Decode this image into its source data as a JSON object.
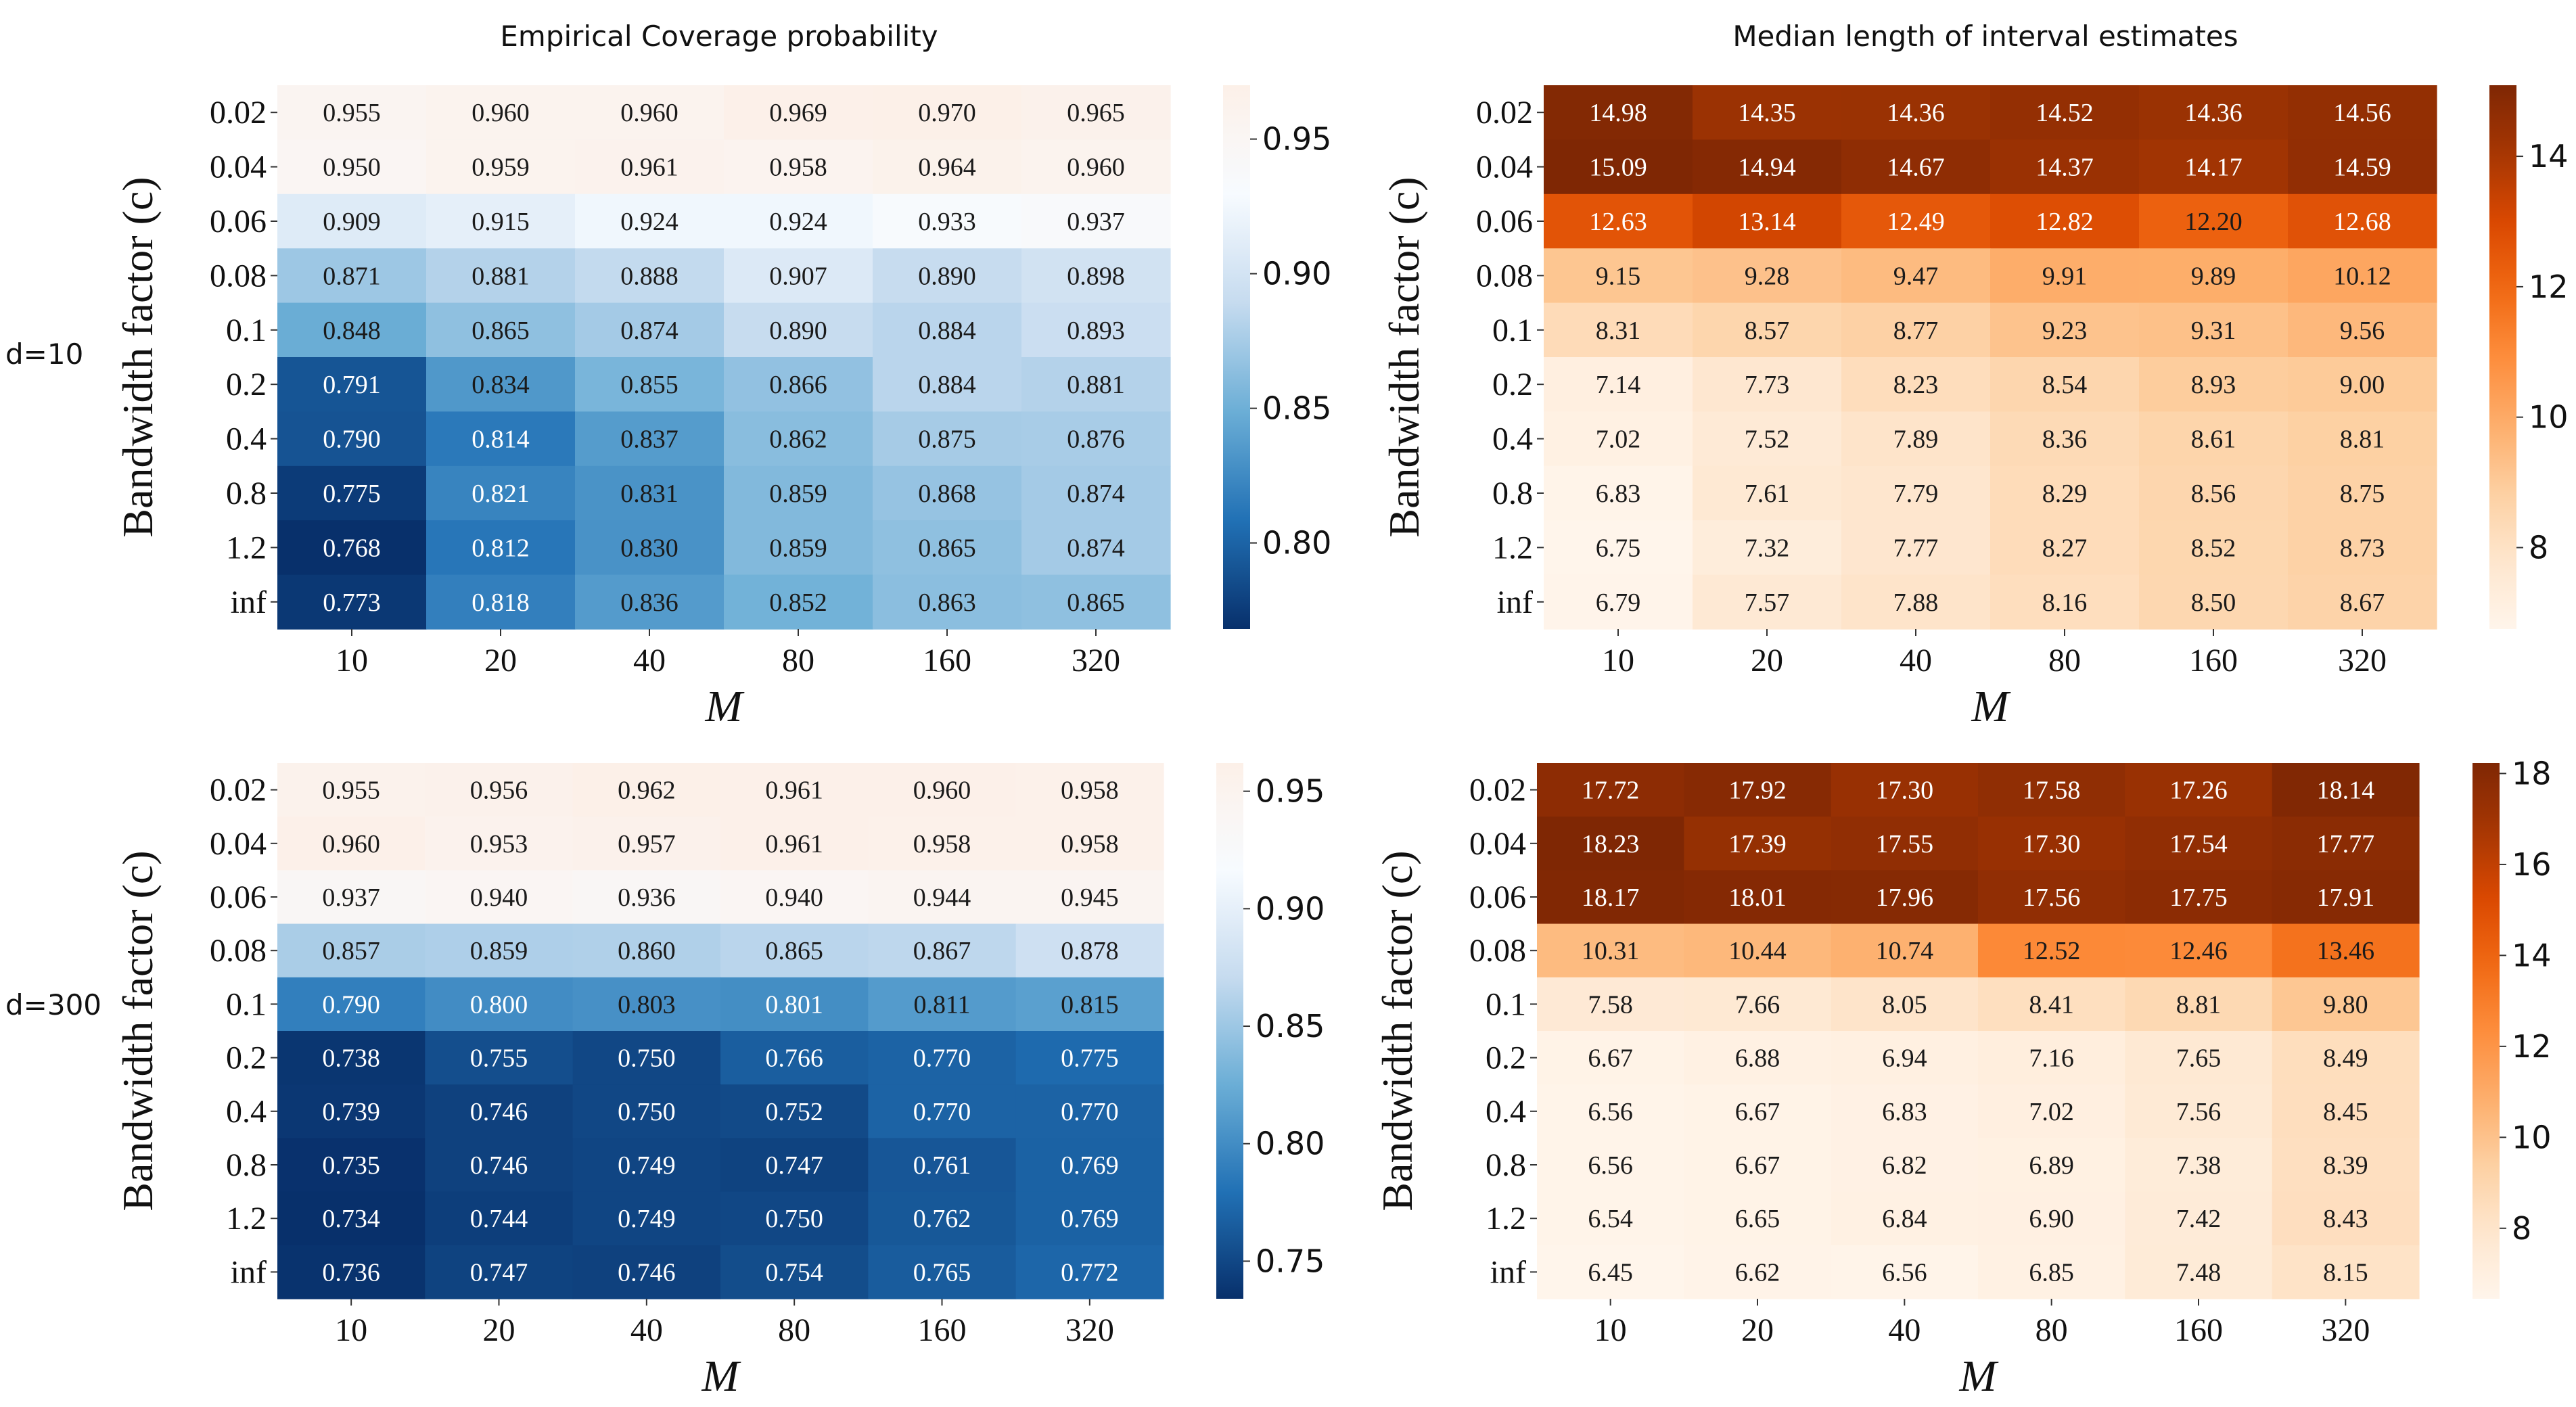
{
  "column_titles": {
    "left": "Empirical Coverage probability",
    "right": "Median length of interval estimates"
  },
  "row_labels": [
    "d=10",
    "d=300"
  ],
  "chart_data": [
    {
      "type": "heatmap",
      "title": "Empirical Coverage probability",
      "row_label": "d=10",
      "colormap": "Blues_r",
      "xlabel": "M",
      "ylabel": "Bandwidth factor (c)",
      "x": [
        "10",
        "20",
        "40",
        "80",
        "160",
        "320"
      ],
      "y": [
        "0.02",
        "0.04",
        "0.06",
        "0.08",
        "0.1",
        "0.2",
        "0.4",
        "0.8",
        "1.2",
        "inf"
      ],
      "values": [
        [
          0.955,
          0.96,
          0.96,
          0.969,
          0.97,
          0.965
        ],
        [
          0.95,
          0.959,
          0.961,
          0.958,
          0.964,
          0.96
        ],
        [
          0.909,
          0.915,
          0.924,
          0.924,
          0.933,
          0.937
        ],
        [
          0.871,
          0.881,
          0.888,
          0.907,
          0.89,
          0.898
        ],
        [
          0.848,
          0.865,
          0.874,
          0.89,
          0.884,
          0.893
        ],
        [
          0.791,
          0.834,
          0.855,
          0.866,
          0.884,
          0.881
        ],
        [
          0.79,
          0.814,
          0.837,
          0.862,
          0.875,
          0.876
        ],
        [
          0.775,
          0.821,
          0.831,
          0.859,
          0.868,
          0.874
        ],
        [
          0.768,
          0.812,
          0.83,
          0.859,
          0.865,
          0.874
        ],
        [
          0.773,
          0.818,
          0.836,
          0.852,
          0.863,
          0.865
        ]
      ],
      "value_labels": [
        [
          "0.955",
          "0.960",
          "0.960",
          "0.969",
          "0.970",
          "0.965"
        ],
        [
          "0.950",
          "0.959",
          "0.961",
          "0.958",
          "0.964",
          "0.960"
        ],
        [
          "0.909",
          "0.915",
          "0.924",
          "0.924",
          "0.933",
          "0.937"
        ],
        [
          "0.871",
          "0.881",
          "0.888",
          "0.907",
          "0.890",
          "0.898"
        ],
        [
          "0.848",
          "0.865",
          "0.874",
          "0.890",
          "0.884",
          "0.893"
        ],
        [
          "0.791",
          "0.834",
          "0.855",
          "0.866",
          "0.884",
          "0.881"
        ],
        [
          "0.790",
          "0.814",
          "0.837",
          "0.862",
          "0.875",
          "0.876"
        ],
        [
          "0.775",
          "0.821",
          "0.831",
          "0.859",
          "0.868",
          "0.874"
        ],
        [
          "0.768",
          "0.812",
          "0.830",
          "0.859",
          "0.865",
          "0.874"
        ],
        [
          "0.773",
          "0.818",
          "0.836",
          "0.852",
          "0.863",
          "0.865"
        ]
      ],
      "vmin": 0.768,
      "vmax": 0.97,
      "colorbar_ticks": [
        0.8,
        0.85,
        0.9,
        0.95
      ],
      "colorbar_tick_labels": [
        "0.80",
        "0.85",
        "0.90",
        "0.95"
      ]
    },
    {
      "type": "heatmap",
      "title": "Median length of interval estimates",
      "row_label": "d=10",
      "colormap": "Oranges",
      "xlabel": "M",
      "ylabel": "Bandwidth factor (c)",
      "x": [
        "10",
        "20",
        "40",
        "80",
        "160",
        "320"
      ],
      "y": [
        "0.02",
        "0.04",
        "0.06",
        "0.08",
        "0.1",
        "0.2",
        "0.4",
        "0.8",
        "1.2",
        "inf"
      ],
      "values": [
        [
          14.98,
          14.35,
          14.36,
          14.52,
          14.36,
          14.56
        ],
        [
          15.09,
          14.94,
          14.67,
          14.37,
          14.17,
          14.59
        ],
        [
          12.63,
          13.14,
          12.49,
          12.82,
          12.2,
          12.68
        ],
        [
          9.15,
          9.28,
          9.47,
          9.91,
          9.89,
          10.12
        ],
        [
          8.31,
          8.57,
          8.77,
          9.23,
          9.31,
          9.56
        ],
        [
          7.14,
          7.73,
          8.23,
          8.54,
          8.93,
          9.0
        ],
        [
          7.02,
          7.52,
          7.89,
          8.36,
          8.61,
          8.81
        ],
        [
          6.83,
          7.61,
          7.79,
          8.29,
          8.56,
          8.75
        ],
        [
          6.75,
          7.32,
          7.77,
          8.27,
          8.52,
          8.73
        ],
        [
          6.79,
          7.57,
          7.88,
          8.16,
          8.5,
          8.67
        ]
      ],
      "value_labels": [
        [
          "14.98",
          "14.35",
          "14.36",
          "14.52",
          "14.36",
          "14.56"
        ],
        [
          "15.09",
          "14.94",
          "14.67",
          "14.37",
          "14.17",
          "14.59"
        ],
        [
          "12.63",
          "13.14",
          "12.49",
          "12.82",
          "12.20",
          "12.68"
        ],
        [
          "9.15",
          "9.28",
          "9.47",
          "9.91",
          "9.89",
          "10.12"
        ],
        [
          "8.31",
          "8.57",
          "8.77",
          "9.23",
          "9.31",
          "9.56"
        ],
        [
          "7.14",
          "7.73",
          "8.23",
          "8.54",
          "8.93",
          "9.00"
        ],
        [
          "7.02",
          "7.52",
          "7.89",
          "8.36",
          "8.61",
          "8.81"
        ],
        [
          "6.83",
          "7.61",
          "7.79",
          "8.29",
          "8.56",
          "8.75"
        ],
        [
          "6.75",
          "7.32",
          "7.77",
          "8.27",
          "8.52",
          "8.73"
        ],
        [
          "6.79",
          "7.57",
          "7.88",
          "8.16",
          "8.50",
          "8.67"
        ]
      ],
      "vmin": 6.75,
      "vmax": 15.09,
      "colorbar_ticks": [
        8,
        10,
        12,
        14
      ],
      "colorbar_tick_labels": [
        "8",
        "10",
        "12",
        "14"
      ]
    },
    {
      "type": "heatmap",
      "title": "",
      "row_label": "d=300",
      "colormap": "Blues_r",
      "xlabel": "M",
      "ylabel": "Bandwidth factor (c)",
      "x": [
        "10",
        "20",
        "40",
        "80",
        "160",
        "320"
      ],
      "y": [
        "0.02",
        "0.04",
        "0.06",
        "0.08",
        "0.1",
        "0.2",
        "0.4",
        "0.8",
        "1.2",
        "inf"
      ],
      "values": [
        [
          0.955,
          0.956,
          0.962,
          0.961,
          0.96,
          0.958
        ],
        [
          0.96,
          0.953,
          0.957,
          0.961,
          0.958,
          0.958
        ],
        [
          0.937,
          0.94,
          0.936,
          0.94,
          0.944,
          0.945
        ],
        [
          0.857,
          0.859,
          0.86,
          0.865,
          0.867,
          0.878
        ],
        [
          0.79,
          0.8,
          0.803,
          0.801,
          0.811,
          0.815
        ],
        [
          0.738,
          0.755,
          0.75,
          0.766,
          0.77,
          0.775
        ],
        [
          0.739,
          0.746,
          0.75,
          0.752,
          0.77,
          0.77
        ],
        [
          0.735,
          0.746,
          0.749,
          0.747,
          0.761,
          0.769
        ],
        [
          0.734,
          0.744,
          0.749,
          0.75,
          0.762,
          0.769
        ],
        [
          0.736,
          0.747,
          0.746,
          0.754,
          0.765,
          0.772
        ]
      ],
      "value_labels": [
        [
          "0.955",
          "0.956",
          "0.962",
          "0.961",
          "0.960",
          "0.958"
        ],
        [
          "0.960",
          "0.953",
          "0.957",
          "0.961",
          "0.958",
          "0.958"
        ],
        [
          "0.937",
          "0.940",
          "0.936",
          "0.940",
          "0.944",
          "0.945"
        ],
        [
          "0.857",
          "0.859",
          "0.860",
          "0.865",
          "0.867",
          "0.878"
        ],
        [
          "0.790",
          "0.800",
          "0.803",
          "0.801",
          "0.811",
          "0.815"
        ],
        [
          "0.738",
          "0.755",
          "0.750",
          "0.766",
          "0.770",
          "0.775"
        ],
        [
          "0.739",
          "0.746",
          "0.750",
          "0.752",
          "0.770",
          "0.770"
        ],
        [
          "0.735",
          "0.746",
          "0.749",
          "0.747",
          "0.761",
          "0.769"
        ],
        [
          "0.734",
          "0.744",
          "0.749",
          "0.750",
          "0.762",
          "0.769"
        ],
        [
          "0.736",
          "0.747",
          "0.746",
          "0.754",
          "0.765",
          "0.772"
        ]
      ],
      "vmin": 0.734,
      "vmax": 0.962,
      "colorbar_ticks": [
        0.75,
        0.8,
        0.85,
        0.9,
        0.95
      ],
      "colorbar_tick_labels": [
        "0.75",
        "0.80",
        "0.85",
        "0.90",
        "0.95"
      ]
    },
    {
      "type": "heatmap",
      "title": "",
      "row_label": "d=300",
      "colormap": "Oranges",
      "xlabel": "M",
      "ylabel": "Bandwidth factor (c)",
      "x": [
        "10",
        "20",
        "40",
        "80",
        "160",
        "320"
      ],
      "y": [
        "0.02",
        "0.04",
        "0.06",
        "0.08",
        "0.1",
        "0.2",
        "0.4",
        "0.8",
        "1.2",
        "inf"
      ],
      "values": [
        [
          17.72,
          17.92,
          17.3,
          17.58,
          17.26,
          18.14
        ],
        [
          18.23,
          17.39,
          17.55,
          17.3,
          17.54,
          17.77
        ],
        [
          18.17,
          18.01,
          17.96,
          17.56,
          17.75,
          17.91
        ],
        [
          10.31,
          10.44,
          10.74,
          12.52,
          12.46,
          13.46
        ],
        [
          7.58,
          7.66,
          8.05,
          8.41,
          8.81,
          9.8
        ],
        [
          6.67,
          6.88,
          6.94,
          7.16,
          7.65,
          8.49
        ],
        [
          6.56,
          6.67,
          6.83,
          7.02,
          7.56,
          8.45
        ],
        [
          6.56,
          6.67,
          6.82,
          6.89,
          7.38,
          8.39
        ],
        [
          6.54,
          6.65,
          6.84,
          6.9,
          7.42,
          8.43
        ],
        [
          6.45,
          6.62,
          6.56,
          6.85,
          7.48,
          8.15
        ]
      ],
      "value_labels": [
        [
          "17.72",
          "17.92",
          "17.30",
          "17.58",
          "17.26",
          "18.14"
        ],
        [
          "18.23",
          "17.39",
          "17.55",
          "17.30",
          "17.54",
          "17.77"
        ],
        [
          "18.17",
          "18.01",
          "17.96",
          "17.56",
          "17.75",
          "17.91"
        ],
        [
          "10.31",
          "10.44",
          "10.74",
          "12.52",
          "12.46",
          "13.46"
        ],
        [
          "7.58",
          "7.66",
          "8.05",
          "8.41",
          "8.81",
          "9.80"
        ],
        [
          "6.67",
          "6.88",
          "6.94",
          "7.16",
          "7.65",
          "8.49"
        ],
        [
          "6.56",
          "6.67",
          "6.83",
          "7.02",
          "7.56",
          "8.45"
        ],
        [
          "6.56",
          "6.67",
          "6.82",
          "6.89",
          "7.38",
          "8.39"
        ],
        [
          "6.54",
          "6.65",
          "6.84",
          "6.90",
          "7.42",
          "8.43"
        ],
        [
          "6.45",
          "6.62",
          "6.56",
          "6.85",
          "7.48",
          "8.15"
        ]
      ],
      "vmin": 6.45,
      "vmax": 18.23,
      "colorbar_ticks": [
        8,
        10,
        12,
        14,
        16,
        18
      ],
      "colorbar_tick_labels": [
        "8",
        "10",
        "12",
        "14",
        "16",
        "18"
      ]
    }
  ]
}
